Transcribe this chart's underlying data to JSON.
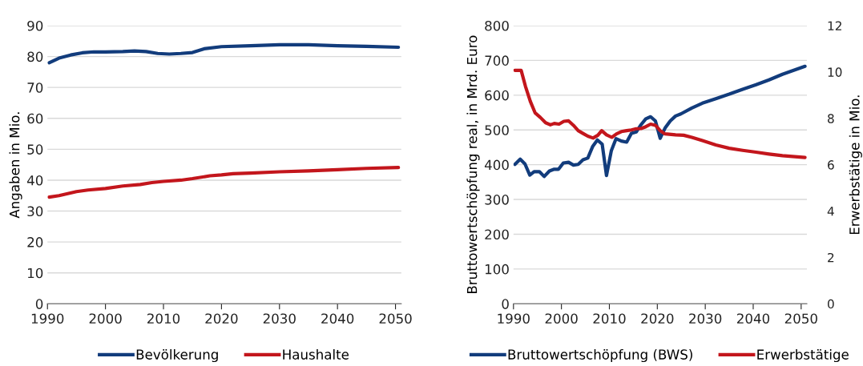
{
  "chart_data": [
    {
      "type": "line",
      "ylabel": "Angaben in Mio.",
      "xlim": [
        1990,
        2051
      ],
      "xticks": [
        1990,
        2000,
        2010,
        2020,
        2030,
        2040,
        2050
      ],
      "ylim": [
        0,
        90
      ],
      "yticks": [
        0,
        10,
        20,
        30,
        40,
        50,
        60,
        70,
        80,
        90
      ],
      "grid": "y",
      "legend": "bottom",
      "series": [
        {
          "name": "Bevölkerung",
          "color": "#123c7c",
          "x": [
            1990.3,
            1992,
            1994,
            1996,
            1998,
            2000,
            2003,
            2005,
            2007,
            2009,
            2011,
            2013,
            2015,
            2017,
            2020,
            2025,
            2030,
            2035,
            2040,
            2045,
            2050.5
          ],
          "values": [
            78,
            79.5,
            80.5,
            81.2,
            81.5,
            81.5,
            81.6,
            81.8,
            81.6,
            81.0,
            80.8,
            81.0,
            81.3,
            82.5,
            83.2,
            83.5,
            83.8,
            83.8,
            83.5,
            83.3,
            83.0
          ]
        },
        {
          "name": "Haushalte",
          "color": "#c3161c",
          "x": [
            1990.3,
            1992,
            1995,
            1997,
            2000,
            2003,
            2006,
            2008,
            2010,
            2013,
            2015,
            2018,
            2020,
            2022,
            2025,
            2030,
            2035,
            2040,
            2045,
            2050.5
          ],
          "values": [
            34.5,
            35,
            36.3,
            36.8,
            37.3,
            38.1,
            38.6,
            39.2,
            39.6,
            40.0,
            40.5,
            41.4,
            41.7,
            42.1,
            42.3,
            42.7,
            43.0,
            43.4,
            43.8,
            44.1
          ]
        }
      ]
    },
    {
      "type": "line",
      "ylabel": "Bruttowertschöpfung real, in Mrd. Euro",
      "y2label": "Erwerbstätige in Mio.",
      "xlim": [
        1990,
        2051.2
      ],
      "xticks": [
        1990,
        2000,
        2010,
        2020,
        2030,
        2040,
        2050
      ],
      "ylim": [
        0,
        800
      ],
      "yticks": [
        0,
        100,
        200,
        300,
        400,
        500,
        600,
        700,
        800
      ],
      "y2lim": [
        0,
        12
      ],
      "y2ticks": [
        0,
        2,
        4,
        6,
        8,
        10,
        12
      ],
      "grid": "y",
      "legend": "bottom",
      "series": [
        {
          "name": "Bruttowertschöpfung (BWS)",
          "color": "#123c7c",
          "x": [
            1990.3,
            1991.4,
            1992.4,
            1993.4,
            1994.3,
            1995.4,
            1996.4,
            1997.5,
            1998.5,
            1999.4,
            2000.4,
            2001.5,
            2002.5,
            2003.5,
            2004.5,
            2005.5,
            2006.5,
            2007.5,
            2008.5,
            2009.4,
            2010.4,
            2011.4,
            2012.5,
            2013.6,
            2014.6,
            2015.6,
            2016.6,
            2017.6,
            2018.6,
            2019.6,
            2020.6,
            2021.6,
            2022.7,
            2023.8,
            2024.9,
            2027.2,
            2029.4,
            2032.2,
            2035,
            2037.8,
            2040.6,
            2043.3,
            2046.1,
            2050.8
          ],
          "values": [
            401,
            416,
            402,
            370,
            380,
            380,
            366,
            382,
            387,
            387,
            405,
            407,
            399,
            401,
            414,
            419,
            452,
            471,
            459,
            369,
            440,
            475,
            468,
            465,
            490,
            494,
            515,
            532,
            538,
            526,
            476,
            505,
            526,
            540,
            546,
            563,
            577,
            590,
            603,
            617,
            630,
            644,
            660,
            683
          ]
        },
        {
          "name": "Erwerbstätige",
          "color": "#c3161c",
          "axis": "y2",
          "x": [
            1990.3,
            1991.6,
            1992.5,
            1993.5,
            1994.5,
            1995.6,
            1996.7,
            1997.7,
            1998.5,
            1999.5,
            2000.5,
            2001.5,
            2002.5,
            2003.5,
            2004.5,
            2005.5,
            2006.6,
            2007.6,
            2008.4,
            2009.4,
            2010.5,
            2011.5,
            2012.5,
            2013.6,
            2014.6,
            2015.6,
            2016.6,
            2017.6,
            2018.6,
            2019.6,
            2020.6,
            2021.6,
            2023.8,
            2025.5,
            2027.2,
            2029.4,
            2032.2,
            2035,
            2037.8,
            2040.6,
            2043.3,
            2046.1,
            2050.8
          ],
          "values": [
            10.07,
            10.07,
            9.38,
            8.74,
            8.24,
            8.04,
            7.81,
            7.72,
            7.78,
            7.75,
            7.87,
            7.89,
            7.7,
            7.47,
            7.35,
            7.23,
            7.15,
            7.27,
            7.47,
            7.29,
            7.18,
            7.33,
            7.43,
            7.47,
            7.5,
            7.55,
            7.56,
            7.64,
            7.75,
            7.7,
            7.47,
            7.33,
            7.29,
            7.27,
            7.18,
            7.04,
            6.85,
            6.71,
            6.62,
            6.54,
            6.46,
            6.39,
            6.31
          ]
        }
      ]
    }
  ]
}
